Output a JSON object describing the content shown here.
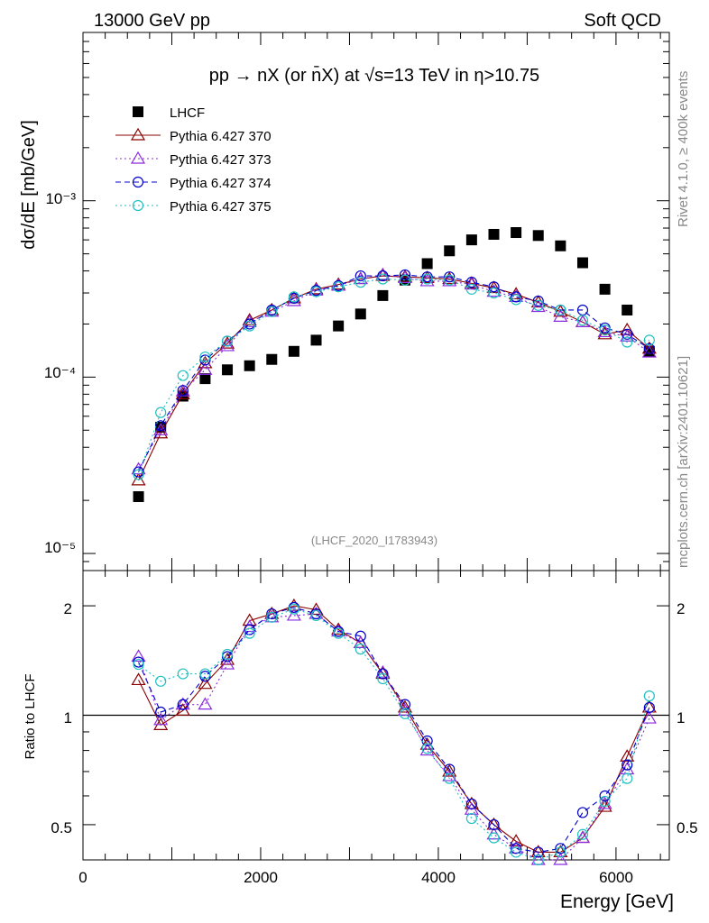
{
  "header": {
    "left": "13000 GeV pp",
    "right": "Soft QCD"
  },
  "side": {
    "top": "Rivet 4.1.0, ≥ 400k events",
    "bottom": "mcplots.cern.ch [arXiv:2401.10621]"
  },
  "chart_data": [
    {
      "type": "scatter",
      "title": "pp → nX (or n̄X) at √s=13 TeV in η>10.75",
      "watermark": "(LHCF_2020_I1783943)",
      "ylabel": "dσ/dE [mb/GeV]",
      "yscale": "log",
      "ylim": [
        8e-06,
        0.009
      ],
      "xlim": [
        0,
        6600
      ],
      "ytick_labels": [
        "10⁻⁵",
        "10⁻⁴",
        "10⁻³"
      ],
      "x": [
        625,
        875,
        1125,
        1375,
        1625,
        1875,
        2125,
        2375,
        2625,
        2875,
        3125,
        3375,
        3625,
        3875,
        4125,
        4375,
        4625,
        4875,
        5125,
        5375,
        5625,
        5875,
        6125,
        6375
      ],
      "series": [
        {
          "name": "LHCF",
          "color": "#000000",
          "marker": "square",
          "line": "none",
          "values": [
            2.1e-05,
            5.2e-05,
            7.8e-05,
            9.8e-05,
            0.00011,
            0.000116,
            0.000126,
            0.00014,
            0.000162,
            0.000195,
            0.000228,
            0.00029,
            0.000355,
            0.00044,
            0.00052,
            0.0006,
            0.000645,
            0.00066,
            0.000635,
            0.000555,
            0.000445,
            0.000315,
            0.00024,
            0.00014
          ]
        },
        {
          "name": "Pythia 6.427 370",
          "color": "#8b0000",
          "marker": "triangle",
          "line": "solid",
          "values": [
            2.6e-05,
            4.8e-05,
            8e-05,
            0.00012,
            0.000155,
            0.00021,
            0.00024,
            0.00028,
            0.000315,
            0.000335,
            0.00036,
            0.000375,
            0.00037,
            0.000365,
            0.00036,
            0.00034,
            0.00032,
            0.000295,
            0.000265,
            0.000235,
            0.000205,
            0.000175,
            0.000185,
            0.000145
          ]
        },
        {
          "name": "Pythia 6.427 373",
          "color": "#8a2be2",
          "marker": "triangle",
          "line": "dotted",
          "values": [
            3e-05,
            5e-05,
            8.3e-05,
            0.00011,
            0.00015,
            0.000205,
            0.000235,
            0.00027,
            0.00031,
            0.00033,
            0.00036,
            0.00038,
            0.000365,
            0.00035,
            0.00035,
            0.000335,
            0.000305,
            0.000285,
            0.00025,
            0.00022,
            0.000205,
            0.00018,
            0.00017,
            0.000138
          ]
        },
        {
          "name": "Pythia 6.427 374",
          "color": "#0000cc",
          "marker": "circle",
          "line": "dashed",
          "values": [
            2.9e-05,
            5.3e-05,
            8.4e-05,
            0.000125,
            0.00016,
            0.0002,
            0.00024,
            0.00028,
            0.00031,
            0.00033,
            0.000375,
            0.000375,
            0.00038,
            0.00037,
            0.00037,
            0.000345,
            0.000325,
            0.000285,
            0.00027,
            0.00024,
            0.00024,
            0.00019,
            0.000175,
            0.000145
          ]
        },
        {
          "name": "Pythia 6.427 375",
          "color": "#20c0c0",
          "marker": "circle",
          "line": "dotted",
          "values": [
            2.8e-05,
            6.3e-05,
            0.000102,
            0.00013,
            0.00016,
            0.000195,
            0.000235,
            0.000285,
            0.000305,
            0.000325,
            0.000345,
            0.00036,
            0.000355,
            0.00036,
            0.000355,
            0.000315,
            0.0003,
            0.000275,
            0.000255,
            0.00024,
            0.00021,
            0.000185,
            0.000158,
            0.000162
          ]
        }
      ]
    },
    {
      "type": "line",
      "ylabel": "Ratio to LHCF",
      "xlabel": "Energy [GeV]",
      "yscale": "log",
      "ylim": [
        0.4,
        2.5
      ],
      "xlim": [
        0,
        6600
      ],
      "xtick_labels": [
        "0",
        "2000",
        "4000",
        "6000"
      ],
      "ytick_labels": [
        "0.5",
        "1",
        "2"
      ],
      "reference_line": 1,
      "x": [
        625,
        875,
        1125,
        1375,
        1625,
        1875,
        2125,
        2375,
        2625,
        2875,
        3125,
        3375,
        3625,
        3875,
        4125,
        4375,
        4625,
        4875,
        5125,
        5375,
        5625,
        5875,
        6125,
        6375
      ],
      "series": [
        {
          "name": "Pythia 6.427 370",
          "color": "#8b0000",
          "marker": "triangle",
          "line": "solid",
          "values": [
            1.25,
            0.94,
            1.03,
            1.22,
            1.42,
            1.82,
            1.9,
            2.0,
            1.95,
            1.72,
            1.58,
            1.3,
            1.05,
            0.83,
            0.7,
            0.57,
            0.5,
            0.45,
            0.42,
            0.42,
            0.46,
            0.56,
            0.77,
            1.05
          ]
        },
        {
          "name": "Pythia 6.427 373",
          "color": "#8a2be2",
          "marker": "triangle",
          "line": "dotted",
          "values": [
            1.45,
            0.97,
            1.07,
            1.07,
            1.38,
            1.75,
            1.86,
            1.88,
            1.9,
            1.7,
            1.58,
            1.31,
            1.03,
            0.8,
            0.68,
            0.55,
            0.47,
            0.43,
            0.4,
            0.4,
            0.46,
            0.57,
            0.71,
            0.98
          ]
        },
        {
          "name": "Pythia 6.427 374",
          "color": "#0000cc",
          "marker": "circle",
          "line": "dashed",
          "values": [
            1.4,
            1.02,
            1.07,
            1.28,
            1.45,
            1.72,
            1.9,
            1.98,
            1.9,
            1.7,
            1.65,
            1.3,
            1.07,
            0.85,
            0.71,
            0.57,
            0.5,
            0.43,
            0.42,
            0.43,
            0.54,
            0.6,
            0.73,
            1.05
          ]
        },
        {
          "name": "Pythia 6.427 375",
          "color": "#20c0c0",
          "marker": "circle",
          "line": "dotted",
          "values": [
            1.38,
            1.24,
            1.3,
            1.3,
            1.47,
            1.68,
            1.86,
            1.96,
            1.88,
            1.68,
            1.52,
            1.26,
            1.01,
            0.81,
            0.67,
            0.52,
            0.46,
            0.42,
            0.4,
            0.42,
            0.47,
            0.58,
            0.67,
            1.13
          ]
        }
      ]
    }
  ]
}
